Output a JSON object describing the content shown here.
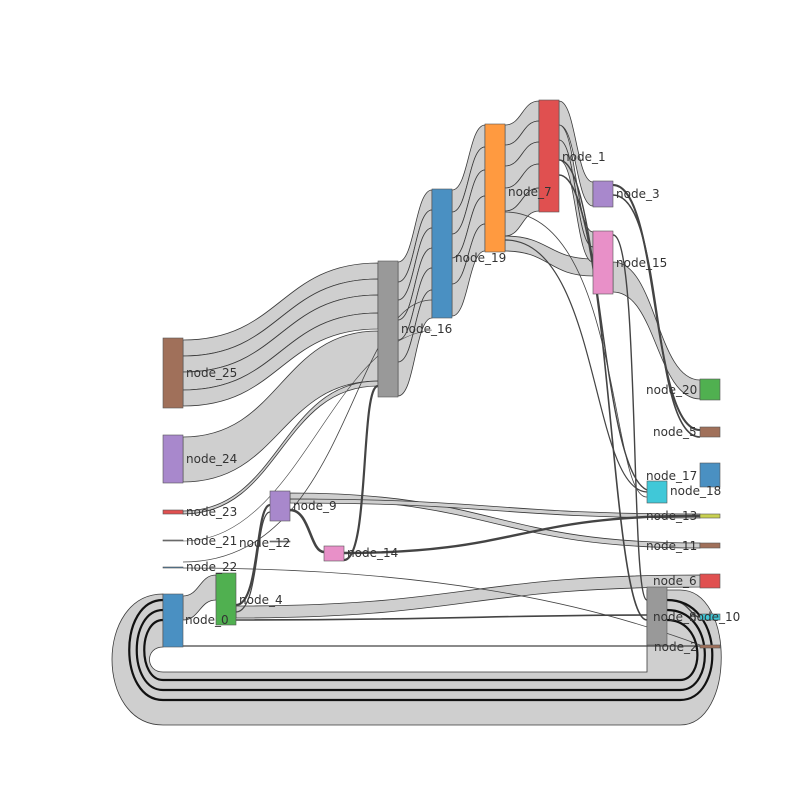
{
  "diagram": {
    "type": "sankey",
    "nodes": [
      {
        "id": "node_0",
        "label": "node_0",
        "color": "#4a90c2"
      },
      {
        "id": "node_1",
        "label": "node_1",
        "color": "#e05050"
      },
      {
        "id": "node_2",
        "label": "node_2",
        "color": "#a0705a"
      },
      {
        "id": "node_3",
        "label": "node_3",
        "color": "#a888cc"
      },
      {
        "id": "node_4",
        "label": "node_4",
        "color": "#50b050"
      },
      {
        "id": "node_5",
        "label": "node_5",
        "color": "#a0705a"
      },
      {
        "id": "node_6",
        "label": "node_6",
        "color": "#e05050"
      },
      {
        "id": "node_7",
        "label": "node_7",
        "color": "#ff9a40"
      },
      {
        "id": "node_8",
        "label": "node_8",
        "color": "#999999"
      },
      {
        "id": "node_9",
        "label": "node_9",
        "color": "#a888cc"
      },
      {
        "id": "node_10",
        "label": "node_10",
        "color": "#40c8d8"
      },
      {
        "id": "node_11",
        "label": "node_11",
        "color": "#a0705a"
      },
      {
        "id": "node_12",
        "label": "node_12",
        "color": "#888888"
      },
      {
        "id": "node_13",
        "label": "node_13",
        "color": "#c8d050"
      },
      {
        "id": "node_14",
        "label": "node_14",
        "color": "#e890c8"
      },
      {
        "id": "node_15",
        "label": "node_15",
        "color": "#e890c8"
      },
      {
        "id": "node_16",
        "label": "node_16",
        "color": "#999999"
      },
      {
        "id": "node_17",
        "label": "node_17",
        "color": "#40c8d8"
      },
      {
        "id": "node_18",
        "label": "node_18",
        "color": "#4a90c2"
      },
      {
        "id": "node_19",
        "label": "node_19",
        "color": "#4a90c2"
      },
      {
        "id": "node_20",
        "label": "node_20",
        "color": "#50b050"
      },
      {
        "id": "node_21",
        "label": "node_21",
        "color": "#888888"
      },
      {
        "id": "node_22",
        "label": "node_22",
        "color": "#4a90c2"
      },
      {
        "id": "node_23",
        "label": "node_23",
        "color": "#e05050"
      },
      {
        "id": "node_24",
        "label": "node_24",
        "color": "#a888cc"
      },
      {
        "id": "node_25",
        "label": "node_25",
        "color": "#a0705a"
      }
    ]
  }
}
